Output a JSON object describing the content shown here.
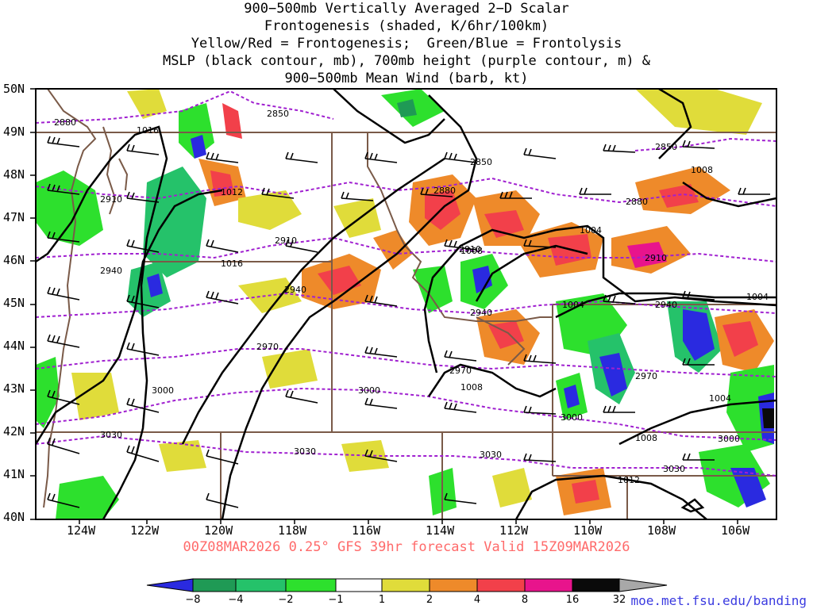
{
  "title_lines": [
    "900−500mb Vertically Averaged 2−D Scalar",
    "Frontogenesis (shaded, K/6hr/100km)",
    "Yellow/Red = Frontogenesis;  Green/Blue = Frontolysis",
    "MSLP (black contour, mb), 700mb height (purple contour, m) &",
    "900−500mb Mean Wind (barb, kt)"
  ],
  "lat_labels": [
    "50N",
    "49N",
    "48N",
    "47N",
    "46N",
    "45N",
    "44N",
    "43N",
    "42N",
    "41N",
    "40N"
  ],
  "lon_labels": [
    "124W",
    "122W",
    "120W",
    "118W",
    "116W",
    "114W",
    "112W",
    "110W",
    "108W",
    "106W"
  ],
  "footer": "00Z08MAR2026 0.25° GFS 39hr forecast Valid 15Z09MAR2026",
  "credit": "moe.met.fsu.edu/banding",
  "colorbar": {
    "labels": [
      "−8",
      "−4",
      "−2",
      "−1",
      "1",
      "2",
      "4",
      "8",
      "16",
      "32"
    ],
    "colors": [
      "#2a2ae0",
      "#1f9a55",
      "#25c26a",
      "#2de02d",
      "#ffffff",
      "#e0dc3a",
      "#ee8a2a",
      "#f2404a",
      "#e8148c",
      "#0a0a0a",
      "#a8a8a8"
    ]
  },
  "pressure_labels": [
    "1016",
    "1012",
    "1016",
    "1008",
    "1004",
    "1004",
    "1008",
    "1004",
    "1008",
    "1004",
    "1008",
    "1012"
  ],
  "height_labels": [
    "2850",
    "2880",
    "2880",
    "2850",
    "2850",
    "2910",
    "2880",
    "2910",
    "2910",
    "2940",
    "2910",
    "2940",
    "2940",
    "2940",
    "2970",
    "2970",
    "2970",
    "3000",
    "3000",
    "3000",
    "3000",
    "3030",
    "3030",
    "3030",
    "3030"
  ]
}
